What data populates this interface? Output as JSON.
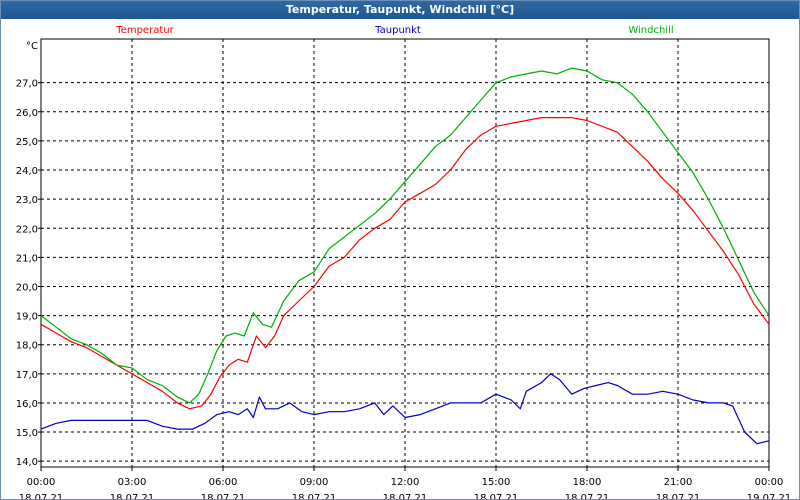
{
  "window": {
    "title": "Temperatur, Taupunkt, Windchill [°C]"
  },
  "chart_data": {
    "type": "line",
    "title": "Temperatur, Taupunkt, Windchill [°C]",
    "ylabel": "°C",
    "ylim": [
      13.8,
      28.5
    ],
    "yticks": [
      "14,0",
      "15,0",
      "16,0",
      "17,0",
      "18,0",
      "19,0",
      "20,0",
      "21,0",
      "22,0",
      "23,0",
      "24,0",
      "25,0",
      "26,0",
      "27,0"
    ],
    "xlim": [
      0,
      24
    ],
    "xticks": [
      {
        "time": "00:00",
        "date": "18.07.21"
      },
      {
        "time": "03:00",
        "date": "18.07.21"
      },
      {
        "time": "06:00",
        "date": "18.07.21"
      },
      {
        "time": "09:00",
        "date": "18.07.21"
      },
      {
        "time": "12:00",
        "date": "18.07.21"
      },
      {
        "time": "15:00",
        "date": "18.07.21"
      },
      {
        "time": "18:00",
        "date": "18.07.21"
      },
      {
        "time": "21:00",
        "date": "18.07.21"
      },
      {
        "time": "00:00",
        "date": "19.07.21"
      }
    ],
    "grid": true,
    "legend_position": "top",
    "series": [
      {
        "name": "Temperatur",
        "color": "#ff0000",
        "points": [
          [
            0,
            18.7
          ],
          [
            0.5,
            18.4
          ],
          [
            1,
            18.1
          ],
          [
            1.5,
            17.9
          ],
          [
            2,
            17.6
          ],
          [
            2.5,
            17.3
          ],
          [
            3,
            17.0
          ],
          [
            3.5,
            16.7
          ],
          [
            4,
            16.4
          ],
          [
            4.5,
            16.0
          ],
          [
            4.9,
            15.8
          ],
          [
            5.3,
            15.9
          ],
          [
            5.6,
            16.3
          ],
          [
            5.9,
            16.9
          ],
          [
            6.2,
            17.3
          ],
          [
            6.5,
            17.5
          ],
          [
            6.8,
            17.4
          ],
          [
            7.1,
            18.3
          ],
          [
            7.4,
            17.9
          ],
          [
            7.7,
            18.3
          ],
          [
            8.0,
            19.0
          ],
          [
            8.5,
            19.5
          ],
          [
            9.0,
            20.0
          ],
          [
            9.5,
            20.7
          ],
          [
            10,
            21.0
          ],
          [
            10.5,
            21.6
          ],
          [
            11,
            22.0
          ],
          [
            11.5,
            22.3
          ],
          [
            12,
            22.9
          ],
          [
            12.5,
            23.2
          ],
          [
            13,
            23.5
          ],
          [
            13.5,
            24.0
          ],
          [
            14,
            24.7
          ],
          [
            14.5,
            25.2
          ],
          [
            15,
            25.5
          ],
          [
            15.5,
            25.6
          ],
          [
            16,
            25.7
          ],
          [
            16.5,
            25.8
          ],
          [
            17,
            25.8
          ],
          [
            17.5,
            25.8
          ],
          [
            18,
            25.7
          ],
          [
            18.5,
            25.5
          ],
          [
            19,
            25.3
          ],
          [
            19.5,
            24.8
          ],
          [
            20,
            24.3
          ],
          [
            20.5,
            23.7
          ],
          [
            21,
            23.2
          ],
          [
            21.5,
            22.6
          ],
          [
            22,
            21.9
          ],
          [
            22.5,
            21.2
          ],
          [
            23,
            20.4
          ],
          [
            23.5,
            19.4
          ],
          [
            24,
            18.7
          ]
        ]
      },
      {
        "name": "Taupunkt",
        "color": "#0000c0",
        "points": [
          [
            0,
            15.1
          ],
          [
            0.5,
            15.3
          ],
          [
            1,
            15.4
          ],
          [
            2,
            15.4
          ],
          [
            3,
            15.4
          ],
          [
            3.5,
            15.4
          ],
          [
            4,
            15.2
          ],
          [
            4.5,
            15.1
          ],
          [
            5,
            15.1
          ],
          [
            5.4,
            15.3
          ],
          [
            5.8,
            15.6
          ],
          [
            6.2,
            15.7
          ],
          [
            6.5,
            15.6
          ],
          [
            6.8,
            15.8
          ],
          [
            7.0,
            15.5
          ],
          [
            7.2,
            16.2
          ],
          [
            7.4,
            15.8
          ],
          [
            7.8,
            15.8
          ],
          [
            8.2,
            16.0
          ],
          [
            8.6,
            15.7
          ],
          [
            9,
            15.6
          ],
          [
            9.5,
            15.7
          ],
          [
            10,
            15.7
          ],
          [
            10.5,
            15.8
          ],
          [
            11,
            16.0
          ],
          [
            11.3,
            15.6
          ],
          [
            11.6,
            15.9
          ],
          [
            12,
            15.5
          ],
          [
            12.5,
            15.6
          ],
          [
            13,
            15.8
          ],
          [
            13.5,
            16.0
          ],
          [
            14,
            16.0
          ],
          [
            14.5,
            16.0
          ],
          [
            15,
            16.3
          ],
          [
            15.5,
            16.1
          ],
          [
            15.8,
            15.8
          ],
          [
            16,
            16.4
          ],
          [
            16.5,
            16.7
          ],
          [
            16.8,
            17.0
          ],
          [
            17.1,
            16.8
          ],
          [
            17.5,
            16.3
          ],
          [
            17.9,
            16.5
          ],
          [
            18.3,
            16.6
          ],
          [
            18.7,
            16.7
          ],
          [
            19,
            16.6
          ],
          [
            19.5,
            16.3
          ],
          [
            20,
            16.3
          ],
          [
            20.5,
            16.4
          ],
          [
            21,
            16.3
          ],
          [
            21.5,
            16.1
          ],
          [
            22,
            16.0
          ],
          [
            22.5,
            16.0
          ],
          [
            22.8,
            15.9
          ],
          [
            23.2,
            15.0
          ],
          [
            23.6,
            14.6
          ],
          [
            24,
            14.7
          ]
        ]
      },
      {
        "name": "Windchill",
        "color": "#00b000",
        "points": [
          [
            0,
            19.0
          ],
          [
            0.5,
            18.6
          ],
          [
            1,
            18.2
          ],
          [
            1.5,
            18.0
          ],
          [
            2,
            17.7
          ],
          [
            2.5,
            17.3
          ],
          [
            3,
            17.2
          ],
          [
            3.5,
            16.8
          ],
          [
            4,
            16.6
          ],
          [
            4.5,
            16.2
          ],
          [
            4.9,
            16.0
          ],
          [
            5.2,
            16.3
          ],
          [
            5.5,
            17.0
          ],
          [
            5.8,
            17.8
          ],
          [
            6.1,
            18.3
          ],
          [
            6.4,
            18.4
          ],
          [
            6.7,
            18.3
          ],
          [
            7.0,
            19.1
          ],
          [
            7.3,
            18.7
          ],
          [
            7.6,
            18.6
          ],
          [
            8.0,
            19.5
          ],
          [
            8.5,
            20.2
          ],
          [
            9.0,
            20.5
          ],
          [
            9.5,
            21.3
          ],
          [
            10,
            21.7
          ],
          [
            10.5,
            22.1
          ],
          [
            11,
            22.5
          ],
          [
            11.5,
            23.0
          ],
          [
            12,
            23.6
          ],
          [
            12.5,
            24.2
          ],
          [
            13,
            24.8
          ],
          [
            13.5,
            25.2
          ],
          [
            14,
            25.8
          ],
          [
            14.5,
            26.4
          ],
          [
            15,
            27.0
          ],
          [
            15.5,
            27.2
          ],
          [
            16,
            27.3
          ],
          [
            16.5,
            27.4
          ],
          [
            17,
            27.3
          ],
          [
            17.5,
            27.5
          ],
          [
            18,
            27.4
          ],
          [
            18.5,
            27.1
          ],
          [
            19,
            27.0
          ],
          [
            19.5,
            26.6
          ],
          [
            20,
            26.0
          ],
          [
            20.5,
            25.3
          ],
          [
            21,
            24.6
          ],
          [
            21.5,
            23.9
          ],
          [
            22,
            23.0
          ],
          [
            22.5,
            22.0
          ],
          [
            23,
            20.9
          ],
          [
            23.5,
            19.8
          ],
          [
            24,
            19.0
          ]
        ]
      }
    ]
  }
}
